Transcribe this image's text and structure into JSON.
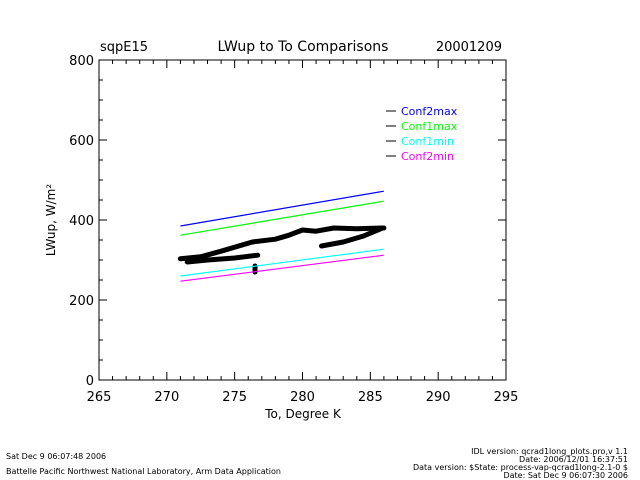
{
  "chart_data": {
    "type": "line",
    "title": "LWup to To Comparisons",
    "title_left": "sqpE15",
    "title_right": "20001209",
    "xlabel": "To, Degree K",
    "ylabel": "LWup, W/m²",
    "xlim": [
      265,
      295
    ],
    "ylim": [
      0,
      800
    ],
    "xticks": [
      "265",
      "270",
      "275",
      "280",
      "285",
      "290",
      "295"
    ],
    "yticks": [
      "0",
      "200",
      "400",
      "600",
      "800"
    ],
    "grid": false,
    "legend_placement": "top-right",
    "series": [
      {
        "name": "Conf2max",
        "color": "#0000ff",
        "x": [
          271,
          286
        ],
        "y": [
          385,
          472
        ]
      },
      {
        "name": "Conf1max",
        "color": "#00ff00",
        "x": [
          271,
          286
        ],
        "y": [
          362,
          447
        ]
      },
      {
        "name": "Conf1min",
        "color": "#00ffff",
        "x": [
          271,
          286
        ],
        "y": [
          260,
          327
        ]
      },
      {
        "name": "Conf2min",
        "color": "#ff00ff",
        "x": [
          271,
          286
        ],
        "y": [
          247,
          312
        ]
      }
    ],
    "observations": {
      "color": "#000000",
      "segments": [
        {
          "x": [
            271,
            272.5,
            274,
            276.3,
            278,
            279,
            280,
            281,
            282.3,
            284,
            286
          ],
          "y": [
            303,
            308,
            322,
            345,
            352,
            362,
            375,
            372,
            380,
            378,
            380
          ]
        },
        {
          "x": [
            271.5,
            273,
            275,
            276.7
          ],
          "y": [
            295,
            300,
            305,
            312
          ]
        },
        {
          "x": [
            281.4,
            283,
            284.5,
            285.9
          ],
          "y": [
            335,
            345,
            360,
            380
          ]
        },
        {
          "x": [
            276.5,
            276.5
          ],
          "y": [
            270,
            285
          ]
        }
      ]
    }
  },
  "footer": {
    "left_date": "Sat Dec  9 06:07:48 2006",
    "left_org": "Battelle Pacific Northwest National Laboratory, Arm Data Application",
    "right_idl": "IDL version: qcrad1long_plots.pro,v 1.1",
    "right_date1": "Date: 2006/12/01 16:37:51",
    "right_data_version": "Data version: $State: process-vap-qcrad1long-2.1-0 $",
    "right_date2": "Date: Sat Dec  9 06:07:30 2006"
  }
}
